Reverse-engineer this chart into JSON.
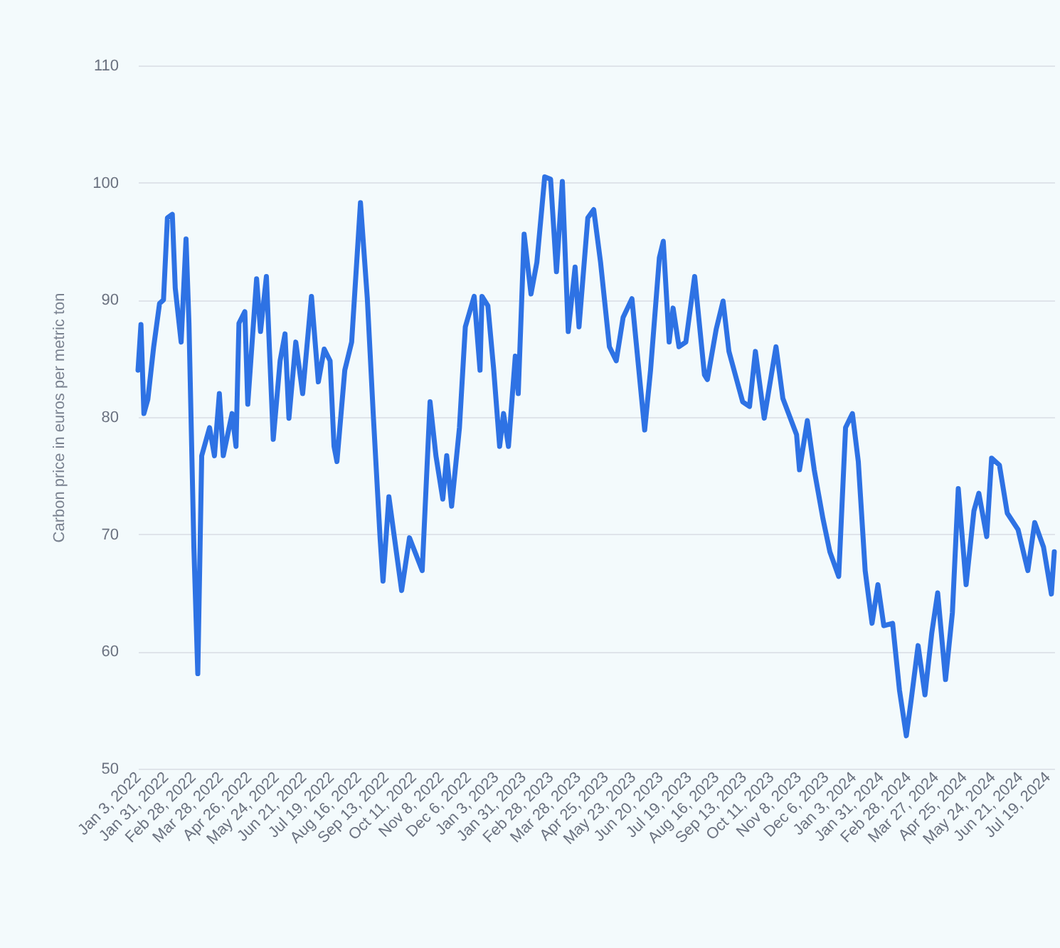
{
  "chart_data": {
    "type": "line",
    "ylabel": "Carbon price in euros per metric ton",
    "color": "#2e72e4",
    "grid": "y",
    "line_style": "solid",
    "x": [
      "2022-01-03",
      "2022-01-06",
      "2022-01-09",
      "2022-01-13",
      "2022-01-19",
      "2022-01-25",
      "2022-01-29",
      "2022-02-02",
      "2022-02-07",
      "2022-02-10",
      "2022-02-16",
      "2022-02-21",
      "2022-02-24",
      "2022-03-01",
      "2022-03-05",
      "2022-03-09",
      "2022-03-17",
      "2022-03-22",
      "2022-03-27",
      "2022-03-31",
      "2022-04-09",
      "2022-04-13",
      "2022-04-16",
      "2022-04-22",
      "2022-04-25",
      "2022-05-04",
      "2022-05-08",
      "2022-05-14",
      "2022-05-21",
      "2022-05-28",
      "2022-06-02",
      "2022-06-06",
      "2022-06-13",
      "2022-06-20",
      "2022-06-29",
      "2022-07-06",
      "2022-07-12",
      "2022-07-18",
      "2022-07-22",
      "2022-07-25",
      "2022-08-02",
      "2022-08-09",
      "2022-08-18",
      "2022-08-25",
      "2022-08-31",
      "2022-09-07",
      "2022-09-10",
      "2022-09-16",
      "2022-09-21",
      "2022-09-29",
      "2022-10-07",
      "2022-10-20",
      "2022-10-28",
      "2022-11-03",
      "2022-11-10",
      "2022-11-14",
      "2022-11-19",
      "2022-11-27",
      "2022-12-03",
      "2022-12-12",
      "2022-12-18",
      "2022-12-20",
      "2022-12-26",
      "2023-01-01",
      "2023-01-07",
      "2023-01-11",
      "2023-01-16",
      "2023-01-23",
      "2023-01-26",
      "2023-02-01",
      "2023-02-08",
      "2023-02-14",
      "2023-02-22",
      "2023-02-28",
      "2023-03-06",
      "2023-03-12",
      "2023-03-18",
      "2023-03-25",
      "2023-03-29",
      "2023-04-07",
      "2023-04-13",
      "2023-04-20",
      "2023-04-29",
      "2023-05-06",
      "2023-05-13",
      "2023-05-22",
      "2023-06-04",
      "2023-06-10",
      "2023-06-19",
      "2023-06-23",
      "2023-06-29",
      "2023-07-03",
      "2023-07-09",
      "2023-07-16",
      "2023-07-25",
      "2023-08-04",
      "2023-08-07",
      "2023-08-16",
      "2023-08-23",
      "2023-08-29",
      "2023-09-12",
      "2023-09-19",
      "2023-09-25",
      "2023-10-04",
      "2023-10-16",
      "2023-10-23",
      "2023-11-06",
      "2023-11-09",
      "2023-11-17",
      "2023-11-24",
      "2023-12-03",
      "2023-12-10",
      "2023-12-19",
      "2023-12-26",
      "2024-01-02",
      "2024-01-08",
      "2024-01-15",
      "2024-01-22",
      "2024-01-28",
      "2024-02-03",
      "2024-02-12",
      "2024-02-19",
      "2024-02-26",
      "2024-03-02",
      "2024-03-09",
      "2024-03-16",
      "2024-03-23",
      "2024-03-29",
      "2024-04-06",
      "2024-04-13",
      "2024-04-19",
      "2024-04-27",
      "2024-05-05",
      "2024-05-10",
      "2024-05-18",
      "2024-05-23",
      "2024-05-31",
      "2024-06-08",
      "2024-06-19",
      "2024-06-29",
      "2024-07-06",
      "2024-07-15",
      "2024-07-23",
      "2024-07-26"
    ],
    "values": [
      84,
      87.9,
      80.3,
      81.5,
      86,
      89.7,
      90,
      97,
      97.3,
      91,
      86.4,
      95.2,
      88,
      68.9,
      58.1,
      76.7,
      79.1,
      76.7,
      82,
      76.7,
      80.3,
      77.5,
      88,
      89,
      81.1,
      91.8,
      87.3,
      92,
      78.1,
      84.8,
      87.1,
      79.9,
      86.4,
      82,
      90.3,
      83,
      85.8,
      84.8,
      77.5,
      76.2,
      84,
      86.4,
      98.3,
      90.1,
      80.3,
      69.7,
      66,
      73.2,
      70.1,
      65.2,
      69.7,
      66.9,
      81.3,
      76.7,
      73,
      76.7,
      72.4,
      79.1,
      87.7,
      90.3,
      84,
      90.3,
      89.5,
      84,
      77.5,
      80.3,
      77.5,
      85.2,
      82,
      95.6,
      90.5,
      93.2,
      100.5,
      100.3,
      92.4,
      100.1,
      87.3,
      92.8,
      87.7,
      97,
      97.7,
      93.2,
      86,
      84.8,
      88.5,
      90.1,
      78.9,
      84,
      93.6,
      95,
      86.4,
      89.3,
      86,
      86.4,
      92,
      83.6,
      83.2,
      87.5,
      89.9,
      85.6,
      81.3,
      80.9,
      85.6,
      79.9,
      86,
      81.6,
      78.5,
      75.5,
      79.7,
      75.5,
      71.3,
      68.5,
      66.4,
      79.1,
      80.3,
      76.2,
      66.9,
      62.4,
      65.7,
      62.2,
      62.4,
      56.7,
      52.8,
      55.9,
      60.5,
      56.3,
      61.6,
      65,
      57.6,
      63.3,
      73.9,
      65.7,
      72,
      73.5,
      69.8,
      76.5,
      75.9,
      71.8,
      70.4,
      66.9,
      71,
      68.9,
      64.9,
      68.5
    ],
    "xlim": [
      "2022-01-03",
      "2024-07-26"
    ],
    "xticks": [
      {
        "value": "2022-01-03",
        "label": "Jan 3, 2022"
      },
      {
        "value": "2022-01-31",
        "label": "Jan 31, 2022"
      },
      {
        "value": "2022-02-28",
        "label": "Feb 28, 2022"
      },
      {
        "value": "2022-03-28",
        "label": "Mar 28, 2022"
      },
      {
        "value": "2022-04-26",
        "label": "Apr 26, 2022"
      },
      {
        "value": "2022-05-24",
        "label": "May 24, 2022"
      },
      {
        "value": "2022-06-21",
        "label": "Jun 21, 2022"
      },
      {
        "value": "2022-07-19",
        "label": "Jul 19, 2022"
      },
      {
        "value": "2022-08-16",
        "label": "Aug 16, 2022"
      },
      {
        "value": "2022-09-13",
        "label": "Sep 13, 2022"
      },
      {
        "value": "2022-10-11",
        "label": "Oct 11, 2022"
      },
      {
        "value": "2022-11-08",
        "label": "Nov 8, 2022"
      },
      {
        "value": "2022-12-06",
        "label": "Dec 6, 2022"
      },
      {
        "value": "2023-01-03",
        "label": "Jan 3, 2023"
      },
      {
        "value": "2023-01-31",
        "label": "Jan 31, 2023"
      },
      {
        "value": "2023-02-28",
        "label": "Feb 28, 2023"
      },
      {
        "value": "2023-03-28",
        "label": "Mar 28, 2023"
      },
      {
        "value": "2023-04-25",
        "label": "Apr 25, 2023"
      },
      {
        "value": "2023-05-23",
        "label": "May 23, 2023"
      },
      {
        "value": "2023-06-20",
        "label": "Jun 20, 2023"
      },
      {
        "value": "2023-07-19",
        "label": "Jul 19, 2023"
      },
      {
        "value": "2023-08-16",
        "label": "Aug 16, 2023"
      },
      {
        "value": "2023-09-13",
        "label": "Sep 13, 2023"
      },
      {
        "value": "2023-10-11",
        "label": "Oct 11, 2023"
      },
      {
        "value": "2023-11-08",
        "label": "Nov 8, 2023"
      },
      {
        "value": "2023-12-06",
        "label": "Dec 6, 2023"
      },
      {
        "value": "2024-01-03",
        "label": "Jan 3, 2024"
      },
      {
        "value": "2024-01-31",
        "label": "Jan 31, 2024"
      },
      {
        "value": "2024-02-28",
        "label": "Feb 28, 2024"
      },
      {
        "value": "2024-03-27",
        "label": "Mar 27, 2024"
      },
      {
        "value": "2024-04-25",
        "label": "Apr 25, 2024"
      },
      {
        "value": "2024-05-24",
        "label": "May 24, 2024"
      },
      {
        "value": "2024-06-21",
        "label": "Jun 21, 2024"
      },
      {
        "value": "2024-07-19",
        "label": "Jul 19, 2024"
      }
    ],
    "ylim": [
      50,
      110
    ],
    "yticks": [
      50,
      60,
      70,
      80,
      90,
      100,
      110
    ]
  }
}
